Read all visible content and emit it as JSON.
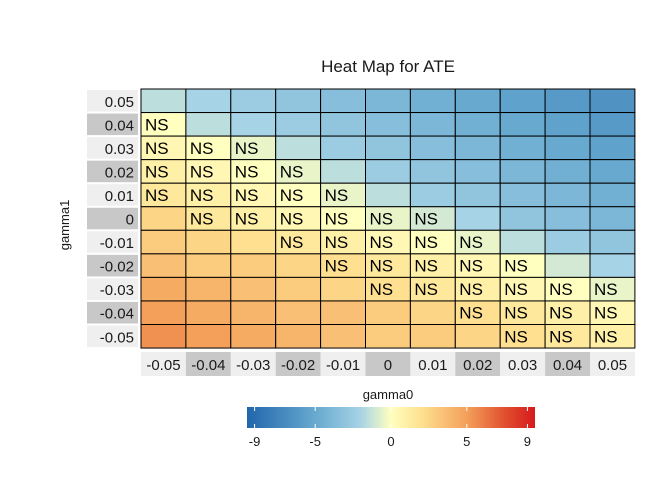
{
  "chart_data": {
    "type": "heatmap",
    "title": "Heat Map for ATE",
    "xlabel": "gamma0",
    "ylabel": "gamma1",
    "x_categories": [
      "-0.05",
      "-0.04",
      "-0.03",
      "-0.02",
      "-0.01",
      "0",
      "0.01",
      "0.02",
      "0.03",
      "0.04",
      "0.05"
    ],
    "y_categories": [
      "0.05",
      "0.04",
      "0.03",
      "0.02",
      "0.01",
      "0",
      "-0.01",
      "-0.02",
      "-0.03",
      "-0.04",
      "-0.05"
    ],
    "values": [
      [
        -1.5,
        -2,
        -2.5,
        -3,
        -3.5,
        -4,
        -4.5,
        -5,
        -5.5,
        -6,
        -6.5
      ],
      [
        0,
        -1.5,
        -2,
        -2.5,
        -3,
        -3.5,
        -4,
        -4.5,
        -5,
        -5.5,
        -6
      ],
      [
        0.5,
        0,
        -0.5,
        -1.5,
        -2.5,
        -3,
        -3.5,
        -4,
        -4.5,
        -5,
        -5.5
      ],
      [
        1,
        0.5,
        0,
        -0.5,
        -1.5,
        -2.5,
        -3,
        -3.5,
        -4,
        -4.5,
        -5
      ],
      [
        1.5,
        1,
        0.5,
        0,
        -0.5,
        -1.5,
        -2.5,
        -3,
        -3.5,
        -4,
        -4.5
      ],
      [
        2.5,
        1.5,
        1,
        0.5,
        0,
        -0.5,
        -1,
        -2,
        -3,
        -3.5,
        -4
      ],
      [
        3,
        2.5,
        2,
        1.5,
        1,
        0.5,
        0,
        -0.5,
        -1.5,
        -2.5,
        -3
      ],
      [
        3.5,
        3,
        3,
        2.5,
        2,
        1.5,
        1,
        0.5,
        0,
        -1,
        -2
      ],
      [
        4.5,
        4,
        3.5,
        3,
        2.5,
        2,
        1.5,
        1,
        0.5,
        0,
        -0.5
      ],
      [
        5,
        4.5,
        4,
        3.5,
        3.5,
        3,
        2.5,
        2,
        1.5,
        1,
        0.5
      ],
      [
        5.5,
        5,
        4.5,
        4,
        3.5,
        3,
        3,
        2.5,
        2,
        1.5,
        1
      ]
    ],
    "labels": [
      [
        "",
        "",
        "",
        "",
        "",
        "",
        "",
        "",
        "",
        "",
        ""
      ],
      [
        "NS",
        "",
        "",
        "",
        "",
        "",
        "",
        "",
        "",
        "",
        ""
      ],
      [
        "NS",
        "NS",
        "NS",
        "",
        "",
        "",
        "",
        "",
        "",
        "",
        ""
      ],
      [
        "NS",
        "NS",
        "NS",
        "NS",
        "",
        "",
        "",
        "",
        "",
        "",
        ""
      ],
      [
        "NS",
        "NS",
        "NS",
        "NS",
        "NS",
        "",
        "",
        "",
        "",
        "",
        ""
      ],
      [
        "",
        "NS",
        "NS",
        "NS",
        "NS",
        "NS",
        "NS",
        "",
        "",
        "",
        ""
      ],
      [
        "",
        "",
        "",
        "NS",
        "NS",
        "NS",
        "NS",
        "NS",
        "",
        "",
        ""
      ],
      [
        "",
        "",
        "",
        "",
        "NS",
        "NS",
        "NS",
        "NS",
        "NS",
        "",
        ""
      ],
      [
        "",
        "",
        "",
        "",
        "",
        "NS",
        "NS",
        "NS",
        "NS",
        "NS",
        "NS"
      ],
      [
        "",
        "",
        "",
        "",
        "",
        "",
        "",
        "NS",
        "NS",
        "NS",
        "NS"
      ],
      [
        "",
        "",
        "",
        "",
        "",
        "",
        "",
        "",
        "NS",
        "NS",
        "NS"
      ]
    ],
    "x_tick_highlight": [
      false,
      true,
      false,
      true,
      false,
      true,
      false,
      true,
      false,
      true,
      false
    ],
    "y_tick_highlight": [
      false,
      true,
      false,
      true,
      false,
      true,
      false,
      true,
      false,
      true,
      false
    ],
    "color_scale": {
      "limits": [
        -9.5,
        9.5
      ],
      "ticks": [
        -9,
        -5,
        0,
        5,
        9
      ],
      "stops": [
        {
          "value": -9.5,
          "color": "#2166ac"
        },
        {
          "value": -5,
          "color": "#67a9cf"
        },
        {
          "value": -2,
          "color": "#a6d3e6"
        },
        {
          "value": 0,
          "color": "#ffffbf"
        },
        {
          "value": 2,
          "color": "#fee090"
        },
        {
          "value": 5,
          "color": "#f4a05a"
        },
        {
          "value": 7.5,
          "color": "#e0502f"
        },
        {
          "value": 9.5,
          "color": "#d7191c"
        }
      ]
    },
    "grid": false,
    "legend_position": "bottom"
  }
}
